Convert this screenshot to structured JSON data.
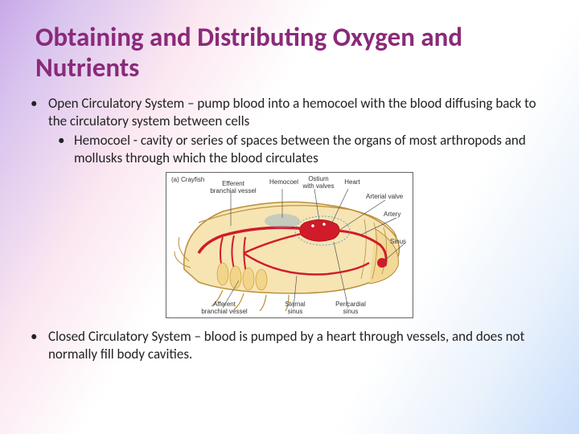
{
  "title": "Obtaining and Distributing Oxygen and Nutrients",
  "bullets": {
    "l1a": "Open Circulatory System – pump blood into a hemocoel with the blood diffusing back to the circulatory system between cells",
    "l2a": "Hemocoel - cavity or series of spaces between the organs of most arthropods and mollusks through which the blood circulates",
    "l1b": "Closed Circulatory System – blood is pumped by a heart through vessels, and does not normally fill body cavities."
  },
  "figure": {
    "caption": "(a) Crayfish",
    "labels": {
      "efferent": "Efferent\nbranchial vessel",
      "hemocoel": "Hemocoel",
      "ostium": "Ostium\nwith valves",
      "heart": "Heart",
      "arterial_valve": "Arterial valve",
      "artery": "Artery",
      "sinus_r": "Sinus",
      "afferent": "Afferent\nbranchial vessel",
      "sternal": "Sternal\nsinus",
      "pericardial": "Pericardial\nsinus"
    },
    "colors": {
      "body_fill": "#f7e4b3",
      "body_stroke": "#b98f3a",
      "shell_fill": "#6aa0cf",
      "vessel": "#d11a2a",
      "sinus_blue": "#6aa0cf",
      "leader": "#555555"
    }
  }
}
